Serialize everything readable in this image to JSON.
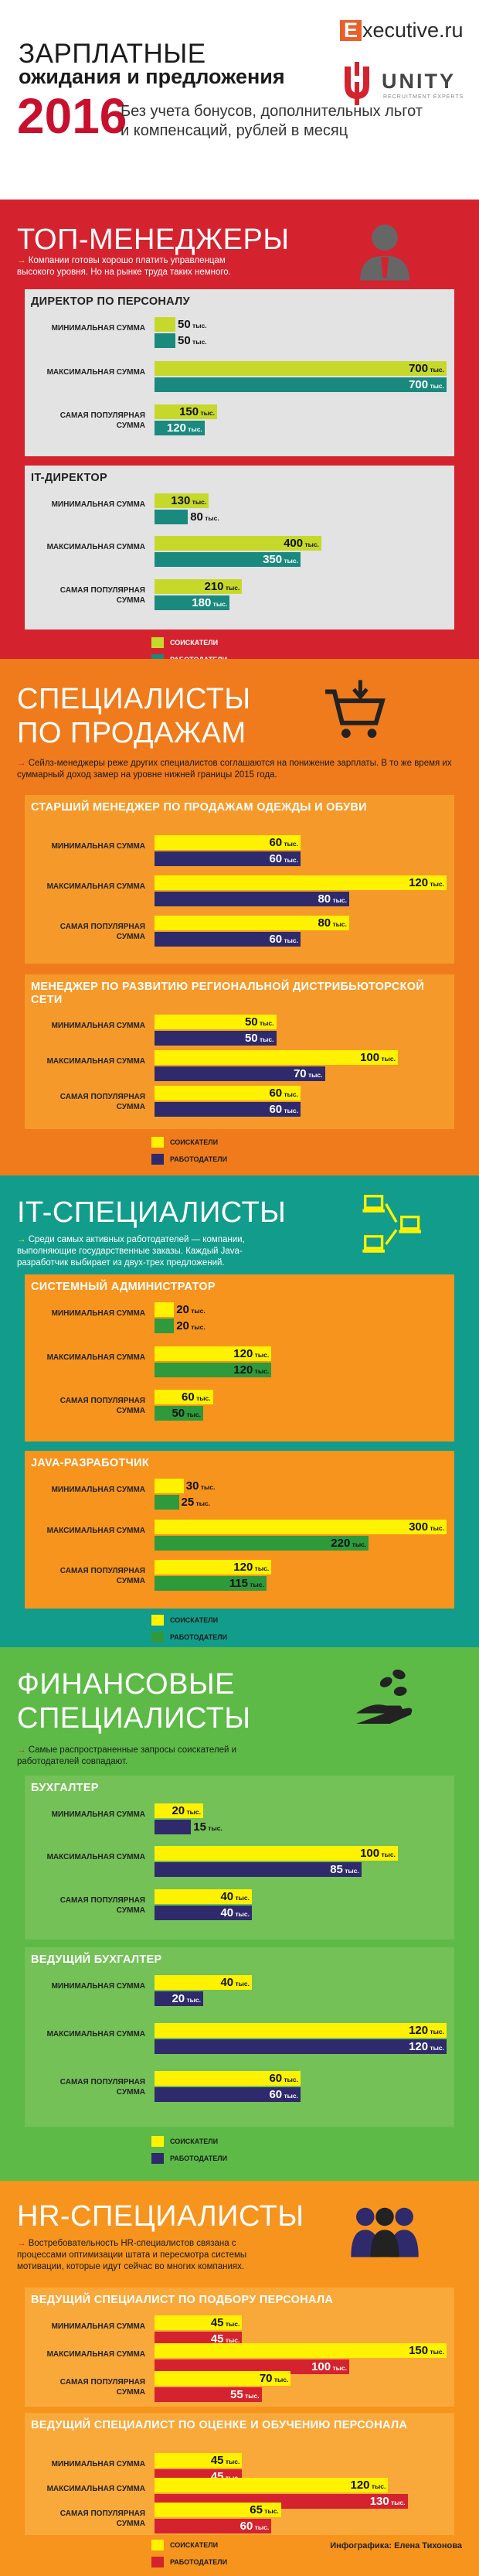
{
  "header": {
    "title_line1": "ЗАРПЛАТНЫЕ",
    "title_line2": "ожидания и предложения",
    "year": "2016",
    "subtitle": "Без учета бонусов, дополнительных льгот и компенсаций, рублей в месяц",
    "logo_exec_letter": "E",
    "logo_exec_rest": "xecutive.ru",
    "logo_unity": "UNITY",
    "logo_unity_tag": "RECRUITMENT EXPERTS"
  },
  "labels": {
    "min": "МИНИМАЛЬНАЯ СУММА",
    "max": "МАКСИМАЛЬНАЯ СУММА",
    "pop": "САМАЯ ПОПУЛЯРНАЯ СУММА",
    "unit": "тыс.",
    "legend_seekers": "СОИСКАТЕЛИ",
    "legend_employers": "РАБОТОДАТЕЛИ"
  },
  "credit": "Инфографика: Елена Тихонова",
  "chart_data": [
    {
      "type": "bar",
      "section": "ТОП-МЕНЕДЖЕРЫ",
      "description": "Компании готовы хорошо платить управленцам высокого уровня. Но на рынке труда таких немного.",
      "colors": {
        "background": "#d4232f",
        "card": "#e3e3e3",
        "seekers": "#c6d92b",
        "employers": "#1a8a7e",
        "title_text": "#222222"
      },
      "positions": [
        {
          "name": "ДИРЕКТОР ПО ПЕРСОНАЛУ",
          "seekers": [
            50,
            700,
            150
          ],
          "employers": [
            50,
            700,
            120
          ]
        },
        {
          "name": "IT-ДИРЕКТОР",
          "seekers": [
            130,
            400,
            210
          ],
          "employers": [
            80,
            350,
            180
          ]
        }
      ]
    },
    {
      "type": "bar",
      "section": "СПЕЦИАЛИСТЫ ПО ПРОДАЖАМ",
      "description": "Сейлз-менеджеры реже других специалистов соглашаются на понижение зарплаты. В то же время их суммарный доход замер на уровне нижней границы 2015 года.",
      "colors": {
        "background": "#ef7b1c",
        "card": "#f59a2a",
        "seekers": "#fff200",
        "employers": "#2e2a6b",
        "title_text": "#ffffff"
      },
      "positions": [
        {
          "name": "СТАРШИЙ МЕНЕДЖЕР ПО ПРОДАЖАМ ОДЕЖДЫ И ОБУВИ",
          "seekers": [
            60,
            120,
            80
          ],
          "employers": [
            60,
            80,
            60
          ]
        },
        {
          "name": "МЕНЕДЖЕР ПО РАЗВИТИЮ РЕГИОНАЛЬНОЙ ДИСТРИБЬЮТОРСКОЙ СЕТИ",
          "seekers": [
            50,
            100,
            60
          ],
          "employers": [
            50,
            70,
            60
          ]
        }
      ]
    },
    {
      "type": "bar",
      "section": "IT-СПЕЦИАЛИСТЫ",
      "description": "Среди самых активных работодателей — компании, выполняющие государственные заказы. Каждый Java-разработчик выбирает из двух-трех предложений.",
      "colors": {
        "background": "#129c8c",
        "card": "#f7941d",
        "seekers": "#fff200",
        "employers": "#2e9a3c",
        "title_text": "#ffffff"
      },
      "positions": [
        {
          "name": "СИСТЕМНЫЙ АДМИНИСТРАТОР",
          "seekers": [
            20,
            120,
            60
          ],
          "employers": [
            20,
            120,
            50
          ]
        },
        {
          "name": "JAVA-РАЗРАБОТЧИК",
          "seekers": [
            30,
            300,
            120
          ],
          "employers": [
            25,
            220,
            115
          ]
        }
      ]
    },
    {
      "type": "bar",
      "section": "ФИНАНСОВЫЕ СПЕЦИАЛИСТЫ",
      "description": "Самые распространенные запросы соискателей и работодателей совпадают.",
      "colors": {
        "background": "#5dba47",
        "card": "#74c157",
        "seekers": "#fff200",
        "employers": "#2e2a6b",
        "title_text": "#ffffff"
      },
      "positions": [
        {
          "name": "БУХГАЛТЕР",
          "seekers": [
            20,
            100,
            40
          ],
          "employers": [
            15,
            85,
            40
          ]
        },
        {
          "name": "ВЕДУЩИЙ БУХГАЛТЕР",
          "seekers": [
            40,
            120,
            60
          ],
          "employers": [
            20,
            120,
            60
          ]
        }
      ]
    },
    {
      "type": "bar",
      "section": "HR-СПЕЦИАЛИСТЫ",
      "description": "Востребовательность HR-специалистов связана с процессами оптимизации штата и пересмотра системы мотивации, которые идут сейчас во многих компаниях.",
      "colors": {
        "background": "#f7941d",
        "card": "#f9a83a",
        "seekers": "#fff200",
        "employers": "#d4232f",
        "title_text": "#ffffff"
      },
      "positions": [
        {
          "name": "ВЕДУЩИЙ СПЕЦИАЛИСТ ПО ПОДБОРУ ПЕРСОНАЛА",
          "seekers": [
            45,
            150,
            70
          ],
          "employers": [
            45,
            100,
            55
          ]
        },
        {
          "name": "ВЕДУЩИЙ СПЕЦИАЛИСТ ПО ОЦЕНКЕ И ОБУЧЕНИЮ ПЕРСОНАЛА",
          "seekers": [
            45,
            120,
            65
          ],
          "employers": [
            45,
            130,
            60
          ]
        }
      ]
    }
  ]
}
